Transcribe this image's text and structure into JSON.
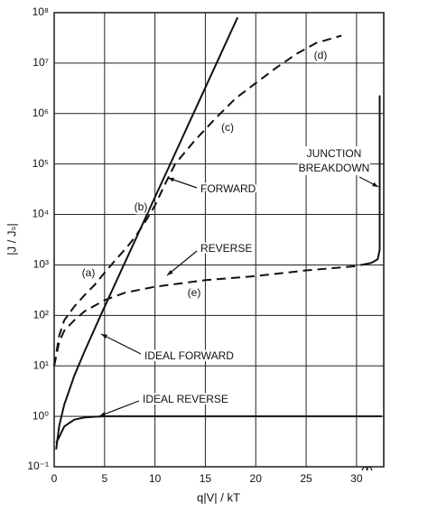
{
  "chart_data": {
    "type": "line",
    "yscale": "log",
    "grid": true,
    "xlabel": "q|V| / kT",
    "ylabel": "|J / Jₛ|",
    "xlim": [
      0,
      32.7
    ],
    "xticks": [
      0,
      5,
      10,
      15,
      20,
      25,
      30
    ],
    "ylim": [
      0.1,
      100000000
    ],
    "yticks": [
      {
        "value": 0.1,
        "label": "10⁻¹"
      },
      {
        "value": 1,
        "label": "10⁰"
      },
      {
        "value": 10,
        "label": "10¹"
      },
      {
        "value": 100,
        "label": "10²"
      },
      {
        "value": 1000,
        "label": "10³"
      },
      {
        "value": 10000,
        "label": "10⁴"
      },
      {
        "value": 100000,
        "label": "10⁵"
      },
      {
        "value": 1000000,
        "label": "10⁶"
      },
      {
        "value": 10000000,
        "label": "10⁷"
      },
      {
        "value": 100000000,
        "label": "10⁸"
      }
    ],
    "series": [
      {
        "name": "IDEAL FORWARD",
        "color": "#111111",
        "dashed": false,
        "x": [
          0.2,
          0.5,
          1,
          2,
          3,
          4.6,
          6.9,
          9.2,
          11.5,
          13.8,
          16.1,
          18.2
        ],
        "values": [
          0.221,
          0.649,
          1.718,
          6.389,
          19.09,
          98.5,
          991,
          9897,
          98700,
          984000,
          9820000,
          80400000
        ]
      },
      {
        "name": "IDEAL REVERSE",
        "color": "#111111",
        "dashed": false,
        "x": [
          0.2,
          0.5,
          1,
          2,
          3,
          4,
          5,
          10,
          20,
          30,
          32.5
        ],
        "values": [
          0.3,
          0.39,
          0.63,
          0.86,
          0.95,
          0.98,
          1,
          1,
          1,
          1,
          1
        ]
      },
      {
        "name": "FORWARD",
        "color": "#111111",
        "dashed": true,
        "x": [
          0,
          0.5,
          1,
          2,
          3,
          4,
          5,
          6,
          7,
          8,
          9,
          10,
          11,
          12,
          14,
          16,
          18,
          20,
          22,
          24,
          26,
          28.5
        ],
        "values": [
          10,
          40,
          80,
          150,
          250,
          400,
          700,
          1200,
          2000,
          3500,
          7000,
          15000,
          40000,
          100000,
          300000,
          800000,
          2000000,
          4000000,
          8000000,
          15000000,
          25000000,
          35000000
        ]
      },
      {
        "name": "REVERSE",
        "color": "#111111",
        "dashed": true,
        "x": [
          0,
          0.5,
          1,
          2,
          3,
          5,
          7,
          10,
          15,
          20,
          25,
          30,
          30.5
        ],
        "values": [
          10,
          30,
          50,
          80,
          120,
          200,
          280,
          370,
          500,
          600,
          780,
          950,
          1000
        ]
      },
      {
        "name": "JUNCTION BREAKDOWN",
        "color": "#111111",
        "dashed": false,
        "x": [
          30.5,
          31.5,
          32.1,
          32.3,
          32.3
        ],
        "values": [
          1000,
          1100,
          1300,
          2000,
          2300000
        ]
      }
    ],
    "annotations": [
      "(a)",
      "(b)",
      "(c)",
      "(d)",
      "(e)"
    ]
  }
}
